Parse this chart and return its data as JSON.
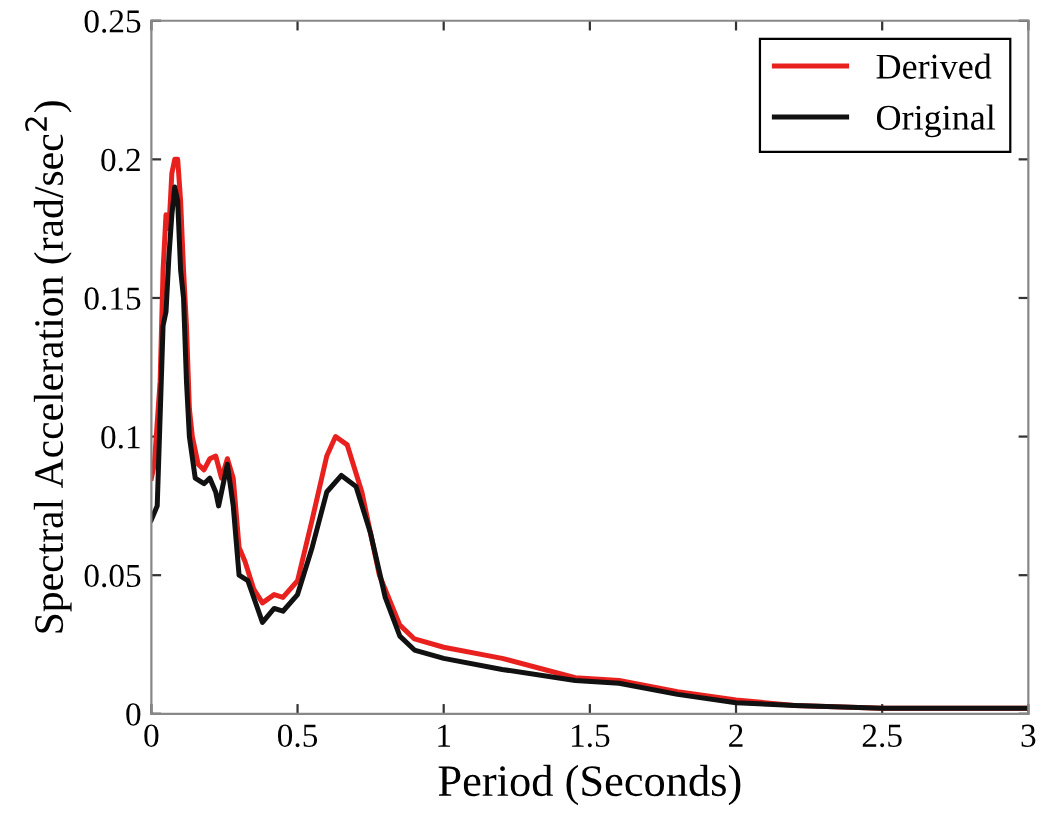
{
  "chart_data": {
    "type": "line",
    "xlabel": "Period (Seconds)",
    "ylabel": "Spectral Acceleration (rad/sec$^{2}$)",
    "xlim": [
      0,
      3
    ],
    "ylim": [
      0,
      0.25
    ],
    "xticks": [
      0,
      0.5,
      1,
      1.5,
      2,
      2.5,
      3
    ],
    "yticks": [
      0,
      0.05,
      0.1,
      0.15,
      0.2,
      0.25
    ],
    "grid": false,
    "legend": "top right",
    "marker": "none",
    "line_style": "solid",
    "series": [
      {
        "name": "Derived",
        "color": "#e8211e",
        "x": [
          0,
          0.01,
          0.03,
          0.04,
          0.05,
          0.06,
          0.07,
          0.08,
          0.09,
          0.1,
          0.11,
          0.12,
          0.13,
          0.14,
          0.16,
          0.18,
          0.2,
          0.22,
          0.24,
          0.26,
          0.28,
          0.3,
          0.32,
          0.35,
          0.38,
          0.42,
          0.45,
          0.5,
          0.55,
          0.6,
          0.63,
          0.67,
          0.72,
          0.78,
          0.85,
          0.9,
          1.0,
          1.2,
          1.45,
          1.6,
          1.8,
          2.0,
          2.2,
          2.5,
          3.0
        ],
        "values": [
          0.085,
          0.09,
          0.12,
          0.16,
          0.18,
          0.175,
          0.195,
          0.2,
          0.2,
          0.185,
          0.16,
          0.14,
          0.11,
          0.1,
          0.09,
          0.088,
          0.092,
          0.093,
          0.085,
          0.092,
          0.085,
          0.06,
          0.055,
          0.045,
          0.04,
          0.043,
          0.042,
          0.048,
          0.07,
          0.093,
          0.1,
          0.097,
          0.08,
          0.05,
          0.032,
          0.027,
          0.024,
          0.02,
          0.013,
          0.012,
          0.008,
          0.005,
          0.003,
          0.002,
          0.002
        ]
      },
      {
        "name": "Original",
        "color": "#111111",
        "x": [
          0,
          0.02,
          0.04,
          0.05,
          0.06,
          0.07,
          0.08,
          0.09,
          0.1,
          0.11,
          0.12,
          0.13,
          0.15,
          0.18,
          0.2,
          0.22,
          0.23,
          0.26,
          0.28,
          0.3,
          0.33,
          0.38,
          0.42,
          0.45,
          0.5,
          0.55,
          0.6,
          0.65,
          0.7,
          0.75,
          0.8,
          0.85,
          0.9,
          1.0,
          1.2,
          1.45,
          1.6,
          1.8,
          2.0,
          2.2,
          2.5,
          3.0
        ],
        "values": [
          0.07,
          0.075,
          0.14,
          0.145,
          0.165,
          0.18,
          0.19,
          0.185,
          0.16,
          0.15,
          0.12,
          0.1,
          0.085,
          0.083,
          0.085,
          0.08,
          0.075,
          0.09,
          0.075,
          0.05,
          0.048,
          0.033,
          0.038,
          0.037,
          0.043,
          0.06,
          0.08,
          0.086,
          0.082,
          0.065,
          0.042,
          0.028,
          0.023,
          0.02,
          0.016,
          0.012,
          0.011,
          0.007,
          0.004,
          0.003,
          0.002,
          0.002
        ]
      }
    ]
  }
}
